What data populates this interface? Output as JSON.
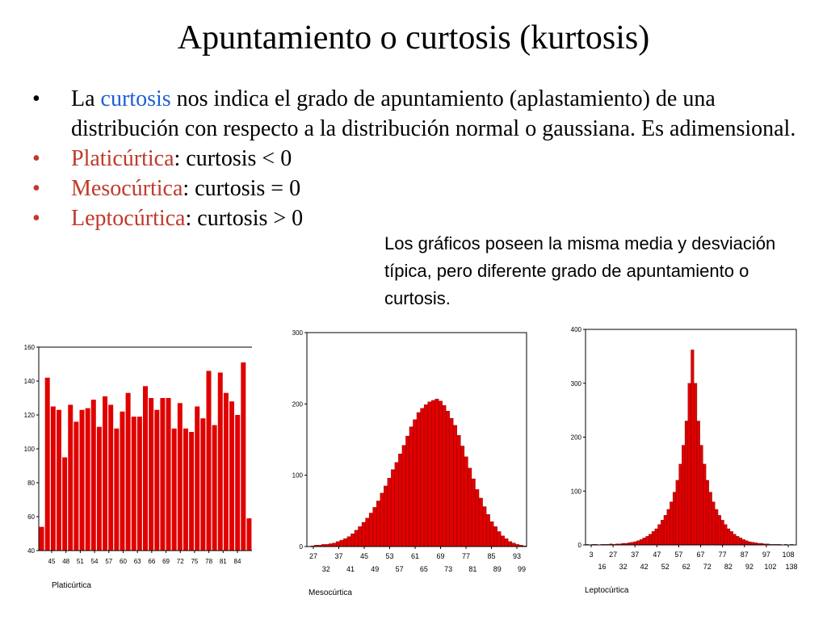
{
  "title": "Apuntamiento o curtosis (kurtosis)",
  "bullets": {
    "b1": {
      "pre": "La ",
      "highlight": "curtosis",
      "post": " nos indica el grado de apuntamiento (aplastamiento) de una distribución con respecto a la distribución normal o gaussiana. Es adimensional."
    },
    "b2": {
      "term": "Platicúrtica",
      "rest": ": curtosis < 0"
    },
    "b3": {
      "term": "Mesocúrtica",
      "rest": ": curtosis = 0"
    },
    "b4": {
      "term": "Leptocúrtica",
      "rest": ": curtosis > 0"
    }
  },
  "note": "Los gráficos poseen la misma  media y desviación típica, pero diferente grado de apuntamiento o curtosis.",
  "colors": {
    "bar": "#e00000",
    "highlight": "#1e5fd6",
    "term": "#c0392b"
  },
  "chart_data": [
    {
      "type": "bar",
      "caption": "Platicúrtica",
      "ylim": [
        40,
        160
      ],
      "y_ticks": [
        40,
        60,
        80,
        100,
        120,
        140,
        160
      ],
      "x_tick_labels": [
        "45",
        "48",
        "51",
        "54",
        "57",
        "60",
        "63",
        "66",
        "69",
        "72",
        "75",
        "78",
        "81",
        "84"
      ],
      "values": [
        54,
        142,
        125,
        123,
        95,
        126,
        116,
        123,
        124,
        129,
        113,
        131,
        126,
        112,
        122,
        133,
        119,
        119,
        137,
        130,
        123,
        130,
        130,
        112,
        127,
        112,
        110,
        125,
        118,
        146,
        114,
        145,
        133,
        128,
        120,
        151,
        59
      ]
    },
    {
      "type": "bar",
      "caption": "Mesocúrtica",
      "ylim": [
        0,
        300
      ],
      "y_ticks": [
        0,
        100,
        200,
        300
      ],
      "x_tick_labels_top": [
        "27",
        "37",
        "45",
        "53",
        "61",
        "69",
        "77",
        "85",
        "93"
      ],
      "x_tick_labels_bottom": [
        "32",
        "41",
        "49",
        "57",
        "65",
        "73",
        "81",
        "89",
        "99"
      ],
      "values": [
        0,
        1,
        2,
        2,
        3,
        3,
        4,
        5,
        7,
        9,
        11,
        14,
        18,
        23,
        28,
        34,
        40,
        47,
        55,
        64,
        75,
        85,
        96,
        108,
        118,
        130,
        142,
        155,
        168,
        178,
        188,
        194,
        199,
        203,
        205,
        207,
        204,
        198,
        190,
        180,
        170,
        156,
        141,
        126,
        110,
        95,
        80,
        68,
        56,
        45,
        35,
        28,
        21,
        15,
        11,
        7,
        5,
        3,
        2,
        1
      ]
    },
    {
      "type": "bar",
      "caption": "Leptocúrtica",
      "ylim": [
        0,
        400
      ],
      "y_ticks": [
        0,
        100,
        200,
        300,
        400
      ],
      "x_tick_labels_top": [
        "3",
        "27",
        "37",
        "47",
        "57",
        "67",
        "77",
        "87",
        "97",
        "108"
      ],
      "x_tick_labels_bottom": [
        "16",
        "32",
        "42",
        "52",
        "62",
        "72",
        "82",
        "92",
        "102",
        "138"
      ],
      "values": [
        1,
        0,
        1,
        1,
        0,
        1,
        1,
        1,
        2,
        1,
        2,
        2,
        3,
        3,
        4,
        5,
        6,
        8,
        10,
        13,
        16,
        20,
        25,
        30,
        38,
        46,
        55,
        66,
        80,
        98,
        120,
        150,
        185,
        230,
        300,
        362,
        300,
        230,
        185,
        150,
        120,
        98,
        80,
        66,
        55,
        46,
        38,
        30,
        25,
        20,
        16,
        13,
        10,
        8,
        6,
        5,
        4,
        3,
        3,
        2,
        2,
        1,
        1,
        1,
        1,
        0,
        1,
        0,
        1,
        0
      ]
    }
  ]
}
